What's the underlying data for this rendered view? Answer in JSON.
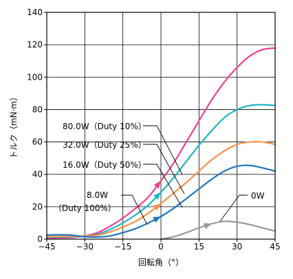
{
  "chart_data": {
    "type": "line",
    "xlabel": "回転角（°）",
    "ylabel": "トルク（mN·m）",
    "xlim": [
      -45,
      45
    ],
    "ylim": [
      0,
      140
    ],
    "xticks": [
      -45,
      -30,
      -15,
      0,
      15,
      30,
      45
    ],
    "xtick_labels": [
      "−45",
      "−30",
      "−15",
      "0",
      "15",
      "30",
      "45"
    ],
    "yticks": [
      0,
      20,
      40,
      60,
      80,
      100,
      120,
      140
    ],
    "grid": true,
    "series": [
      {
        "name": "80.0W（Duty 10%）",
        "color": "#ee3f8f",
        "x": [
          -45,
          -40,
          -35,
          -30,
          -25,
          -20,
          -15,
          -10,
          -5,
          0,
          5,
          10,
          15,
          20,
          25,
          30,
          35,
          40,
          45
        ],
        "y": [
          0.5,
          0.8,
          1.0,
          2,
          4,
          8,
          13,
          19,
          26,
          36,
          47,
          60,
          73,
          86,
          97,
          106,
          113,
          117,
          118
        ]
      },
      {
        "name": "32.0W（Duty 25%）",
        "color": "#1fb3c8",
        "x": [
          -45,
          -40,
          -35,
          -30,
          -25,
          -20,
          -15,
          -10,
          -5,
          0,
          5,
          10,
          15,
          20,
          25,
          30,
          35,
          40,
          45
        ],
        "y": [
          1.2,
          1.3,
          1.4,
          1.8,
          3,
          6,
          10,
          15,
          21,
          29,
          38,
          48,
          58,
          67,
          75,
          80,
          82.5,
          83,
          82.5
        ]
      },
      {
        "name": "16.0W（Duty 50%）",
        "color": "#f7924a",
        "x": [
          -45,
          -40,
          -35,
          -30,
          -25,
          -20,
          -15,
          -10,
          -5,
          0,
          5,
          10,
          15,
          20,
          25,
          30,
          35,
          40,
          45
        ],
        "y": [
          1.5,
          1.6,
          1.7,
          1.9,
          2.5,
          4.5,
          7.5,
          11,
          16,
          22,
          28.5,
          35,
          42,
          49,
          54.5,
          58.5,
          60,
          60,
          58.5
        ]
      },
      {
        "name": "8.0W（Duty 100%）",
        "color": "#1f74bf",
        "x": [
          -45,
          -40,
          -35,
          -30,
          -25,
          -20,
          -15,
          -10,
          -5,
          0,
          5,
          10,
          15,
          20,
          25,
          30,
          35,
          40,
          45
        ],
        "y": [
          2.5,
          2.7,
          2.4,
          1.5,
          1.3,
          2,
          4,
          6.5,
          10,
          14,
          19,
          25,
          31,
          37,
          42,
          45,
          45.5,
          44,
          42
        ]
      },
      {
        "name": "0W",
        "color": "#999999",
        "x": [
          0,
          5,
          10,
          15,
          20,
          25,
          30,
          35,
          40,
          45
        ],
        "y": [
          0,
          1.5,
          4,
          7,
          9.5,
          11,
          10.5,
          9,
          7,
          5
        ]
      }
    ],
    "annotations": [
      {
        "text": "80.0W（Duty 10%）",
        "series": 0
      },
      {
        "text": "32.0W（Duty 25%）",
        "series": 1
      },
      {
        "text": "16.0W（Duty 50%）",
        "series": 2
      },
      {
        "text": "8.0W",
        "text2": "（Duty 100%）",
        "series": 3
      },
      {
        "text": "0W",
        "series": 4
      }
    ]
  }
}
